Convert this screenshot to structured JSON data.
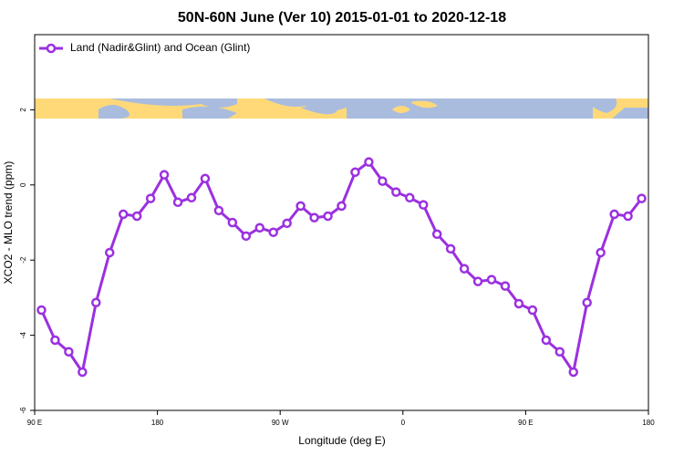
{
  "chart_data": {
    "type": "line",
    "title": "50N-60N June (Ver 10)   2015-01-01 to 2020-12-18",
    "x_label": "Longitude (deg E)",
    "y_label": "XCO2 - MLO trend (ppm)",
    "x": [
      95,
      105,
      115,
      125,
      135,
      145,
      155,
      165,
      175,
      185,
      195,
      205,
      215,
      225,
      235,
      245,
      255,
      265,
      275,
      285,
      295,
      305,
      315,
      325,
      335,
      345,
      355,
      365,
      375,
      385,
      395,
      405,
      415,
      425,
      435,
      445,
      455,
      465,
      475,
      485,
      495,
      505,
      515,
      525,
      535
    ],
    "series": [
      {
        "name": "Land (Nadir&Glint) and Ocean (Glint)",
        "color": "#9b30e0",
        "values": [
          -3.33,
          -4.13,
          -4.44,
          -4.98,
          -3.13,
          -1.8,
          -0.78,
          -0.83,
          -0.36,
          0.27,
          -0.46,
          -0.34,
          0.17,
          -0.68,
          -1.0,
          -1.36,
          -1.14,
          -1.26,
          -1.02,
          -0.56,
          -0.87,
          -0.83,
          -0.56,
          0.34,
          0.61,
          0.1,
          -0.19,
          -0.34,
          -0.53,
          -1.31,
          -1.7,
          -2.23,
          -2.57,
          -2.52,
          -2.69,
          -3.16,
          -3.33,
          -4.13,
          -4.44,
          -4.98,
          -3.13,
          -1.8,
          -0.78,
          -0.83,
          -0.36
        ]
      }
    ],
    "xlim": [
      90,
      540
    ],
    "xticks": [
      {
        "value": 90,
        "label": "90 E"
      },
      180,
      {
        "value": 270,
        "label": "90 W"
      },
      {
        "value": 360,
        "label": "0"
      },
      {
        "value": 450,
        "label": "90 E"
      },
      {
        "value": 540,
        "label": "180"
      }
    ],
    "ylim": [
      -6,
      4
    ],
    "yticks": [
      -6,
      -4,
      -2,
      0,
      2
    ],
    "legend": "top-left"
  }
}
